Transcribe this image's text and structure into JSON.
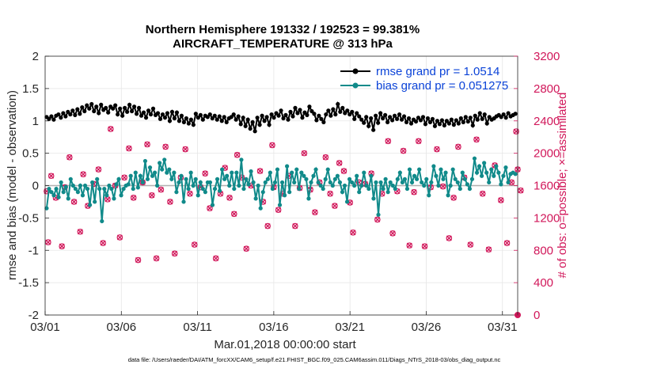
{
  "chart_data": {
    "type": "line",
    "title_line1": "Northern Hemisphere 191332 / 192523 = 99.381%",
    "title_line2": "AIRCRAFT_TEMPERATURE @ 313 hPa",
    "xlabel": "Mar.01,2018 00:00:00 start",
    "ylabel_left": "rmse and bias (model - observation)",
    "ylabel_right": "# of obs: o=possible; ×=assimilated",
    "footer": "data file: /Users/raeder/DAI/ATM_forcXX/CAM6_setup/f.e21.FHIST_BGC.f09_025.CAM6assim.011/Diags_NTrS_2018-03/obs_diag_output.nc",
    "x_ticks": [
      {
        "day": 0,
        "label": "03/01"
      },
      {
        "day": 5,
        "label": "03/06"
      },
      {
        "day": 10,
        "label": "03/11"
      },
      {
        "day": 15,
        "label": "03/16"
      },
      {
        "day": 20,
        "label": "03/21"
      },
      {
        "day": 25,
        "label": "03/26"
      },
      {
        "day": 30,
        "label": "03/31"
      }
    ],
    "xlim": [
      0,
      31
    ],
    "ylim_left": [
      -2,
      2
    ],
    "y_ticks_left": [
      {
        "v": 2,
        "label": "2"
      },
      {
        "v": 1.5,
        "label": "1.5"
      },
      {
        "v": 1,
        "label": "1"
      },
      {
        "v": 0.5,
        "label": "0.5"
      },
      {
        "v": 0,
        "label": "0"
      },
      {
        "v": -0.5,
        "label": "-0.5"
      },
      {
        "v": -1,
        "label": "-1"
      },
      {
        "v": -1.5,
        "label": "-1.5"
      },
      {
        "v": -2,
        "label": "-2"
      }
    ],
    "ylim_right": [
      0,
      3200
    ],
    "y_ticks_right": [
      {
        "v": 3200,
        "label": "3200"
      },
      {
        "v": 2800,
        "label": "2800"
      },
      {
        "v": 2400,
        "label": "2400"
      },
      {
        "v": 2000,
        "label": "2000"
      },
      {
        "v": 1600,
        "label": "1600"
      },
      {
        "v": 1200,
        "label": "1200"
      },
      {
        "v": 800,
        "label": "800"
      },
      {
        "v": 400,
        "label": "400"
      },
      {
        "v": 0,
        "label": "0"
      }
    ],
    "legend": [
      {
        "name": "rmse grand pr = 1.0514",
        "color": "#000000"
      },
      {
        "name": "bias grand pr = 0.051275",
        "color": "#108a8a"
      }
    ],
    "colors": {
      "rmse": "#000000",
      "bias": "#108a8a",
      "obs": "#d1175a",
      "zero_line": "#b0b0b0"
    },
    "series_rmse": [
      1.06,
      1.03,
      1.07,
      1.02,
      1.08,
      1.1,
      1.05,
      1.12,
      1.07,
      1.14,
      1.1,
      1.16,
      1.09,
      1.18,
      1.11,
      1.21,
      1.15,
      1.24,
      1.19,
      1.26,
      1.15,
      1.22,
      1.12,
      1.25,
      1.17,
      1.2,
      1.13,
      1.22,
      1.19,
      1.24,
      1.1,
      1.19,
      1.08,
      1.2,
      1.14,
      1.25,
      1.15,
      1.22,
      1.11,
      1.2,
      1.08,
      1.13,
      1.05,
      1.16,
      1.1,
      1.19,
      1.09,
      1.12,
      1.03,
      1.1,
      1.05,
      1.12,
      1.0,
      1.14,
      1.04,
      1.13,
      1.0,
      1.08,
      0.98,
      1.04,
      0.96,
      1.02,
      0.94,
      1.11,
      1.05,
      1.09,
      1.02,
      1.08,
      1.06,
      1.1,
      1.04,
      1.08,
      1.02,
      1.07,
      1.0,
      1.06,
      0.98,
      1.04,
      1.06,
      1.1,
      1.02,
      1.07,
      0.95,
      1.05,
      0.92,
      1.02,
      0.88,
      0.98,
      0.84,
      1.05,
      0.94,
      1.08,
      1.0,
      1.06,
      0.94,
      1.1,
      1.05,
      1.12,
      1.08,
      1.16,
      1.04,
      1.09,
      1.02,
      1.14,
      1.07,
      1.2,
      1.12,
      1.17,
      1.05,
      1.13,
      1.09,
      1.22,
      1.15,
      1.11,
      1.01,
      1.08,
      1.03,
      0.98,
      1.1,
      1.16,
      1.08,
      1.18,
      1.1,
      1.26,
      1.14,
      1.2,
      1.12,
      1.16,
      1.1,
      1.14,
      1.03,
      1.12,
      1.07,
      1.02,
      0.97,
      1.06,
      0.92,
      1.04,
      0.86,
      1.08,
      0.97,
      1.12,
      1.04,
      1.09,
      0.98,
      1.06,
      1.01,
      1.08,
      1.03,
      1.1,
      1.02,
      1.07,
      0.98,
      1.04,
      0.96,
      1.02,
      0.99,
      1.05,
      1.01,
      1.06,
      0.95,
      1.04,
      0.98,
      1.03,
      0.92,
      1.0,
      0.95,
      1.01,
      0.93,
      1.0,
      0.96,
      1.02,
      0.94,
      1.01,
      0.96,
      1.04,
      0.98,
      1.06,
      0.99,
      1.05,
      0.93,
      1.08,
      1.02,
      1.12,
      1.03,
      1.1,
      0.96,
      1.06,
      1.02,
      1.04,
      1.07,
      1.09,
      1.06,
      1.1,
      1.05,
      1.12,
      1.07,
      1.09,
      1.11
    ],
    "series_bias": [
      -0.35,
      -0.05,
      -0.1,
      -0.15,
      -0.05,
      -0.18,
      0.05,
      -0.1,
      -0.02,
      -0.2,
      0.1,
      0.0,
      -0.05,
      -0.1,
      0.0,
      -0.15,
      0.0,
      -0.05,
      -0.3,
      0.05,
      -0.25,
      0.1,
      -0.05,
      -0.55,
      -0.05,
      -0.15,
      0.0,
      -0.05,
      -0.2,
      0.02,
      0.1,
      -0.15,
      -0.05,
      0.0,
      0.02,
      0.15,
      -0.05,
      0.2,
      -0.03,
      0.15,
      0.05,
      0.38,
      0.1,
      0.28,
      0.15,
      0.2,
      0.0,
      0.35,
      0.25,
      0.4,
      0.2,
      0.25,
      0.1,
      0.2,
      -0.1,
      0.05,
      0.15,
      -0.25,
      0.1,
      -0.05,
      0.2,
      0.0,
      0.1,
      -0.15,
      0.05,
      -0.05,
      -0.1,
      0.05,
      0.05,
      -0.3,
      -0.05,
      0.1,
      -0.08,
      0.25,
      0.1,
      0.15,
      0.0,
      0.2,
      -0.05,
      0.2,
      0.0,
      0.4,
      -0.05,
      0.1,
      0.02,
      0.22,
      0.05,
      -0.2,
      0.0,
      -0.35,
      -0.1,
      0.05,
      0.1,
      0.2,
      -0.05,
      0.05,
      0.25,
      -0.3,
      0.05,
      -0.15,
      0.3,
      -0.1,
      0.2,
      0.05,
      0.25,
      -0.05,
      0.2,
      0.15,
      0.1,
      -0.2,
      0.05,
      0.15,
      0.25,
      0.05,
      0.0,
      -0.05,
      0.1,
      0.25,
      0.05,
      0.0,
      0.1,
      0.15,
      0.05,
      -0.1,
      0.0,
      -0.25,
      0.1,
      0.05,
      0.0,
      0.15,
      -0.1,
      0.0,
      0.2,
      0.0,
      -0.05,
      0.15,
      -0.2,
      0.05,
      -0.45,
      0.05,
      -0.05,
      0.1,
      -0.1,
      0.05,
      0.0,
      -0.05,
      0.1,
      0.2,
      0.05,
      0.1,
      -0.05,
      0.25,
      0.05,
      0.15,
      0.1,
      0.25,
      0.05,
      0.0,
      0.1,
      -0.15,
      0.05,
      0.3,
      0.15,
      0.0,
      0.25,
      0.1,
      0.2,
      -0.15,
      0.0,
      0.25,
      0.1,
      0.05,
      -0.05,
      0.2,
      0.1,
      0.02,
      -0.05,
      0.1,
      0.42,
      0.2,
      0.3,
      0.15,
      0.35,
      0.2,
      0.05,
      0.25,
      0.15,
      0.3,
      0.2,
      0.02,
      0.15,
      0.28,
      0.05,
      0.18,
      0.2,
      0.18
    ],
    "obs_points": [
      [
        0.1,
        1530
      ],
      [
        0.2,
        900
      ],
      [
        0.4,
        1720
      ],
      [
        0.7,
        1450
      ],
      [
        1.1,
        850
      ],
      [
        1.3,
        1580
      ],
      [
        1.6,
        1950
      ],
      [
        1.9,
        1400
      ],
      [
        2.3,
        1030
      ],
      [
        2.5,
        1740
      ],
      [
        2.8,
        1350
      ],
      [
        3.2,
        1620
      ],
      [
        3.5,
        1800
      ],
      [
        3.8,
        890
      ],
      [
        4.1,
        1430
      ],
      [
        4.3,
        2300
      ],
      [
        4.6,
        1600
      ],
      [
        4.9,
        960
      ],
      [
        5.2,
        1700
      ],
      [
        5.5,
        2060
      ],
      [
        5.8,
        1450
      ],
      [
        6.1,
        680
      ],
      [
        6.4,
        1640
      ],
      [
        6.7,
        2110
      ],
      [
        7.0,
        1480
      ],
      [
        7.3,
        700
      ],
      [
        7.6,
        1550
      ],
      [
        7.9,
        2080
      ],
      [
        8.2,
        1400
      ],
      [
        8.5,
        760
      ],
      [
        8.9,
        1700
      ],
      [
        9.2,
        2050
      ],
      [
        9.5,
        1500
      ],
      [
        9.8,
        870
      ],
      [
        10.2,
        1580
      ],
      [
        10.5,
        1750
      ],
      [
        10.8,
        1320
      ],
      [
        11.2,
        700
      ],
      [
        11.5,
        1500
      ],
      [
        11.8,
        1820
      ],
      [
        12.1,
        1450
      ],
      [
        12.4,
        1250
      ],
      [
        12.6,
        1980
      ],
      [
        12.9,
        1700
      ],
      [
        13.2,
        820
      ],
      [
        13.5,
        1600
      ],
      [
        14.1,
        1780
      ],
      [
        14.3,
        1400
      ],
      [
        14.6,
        1100
      ],
      [
        14.9,
        2100
      ],
      [
        15.0,
        1580
      ],
      [
        15.3,
        1300
      ],
      [
        15.6,
        1500
      ],
      [
        16.0,
        1720
      ],
      [
        16.4,
        1100
      ],
      [
        16.7,
        1570
      ],
      [
        17.0,
        2000
      ],
      [
        17.4,
        1550
      ],
      [
        17.7,
        1270
      ],
      [
        18.0,
        1640
      ],
      [
        18.4,
        1950
      ],
      [
        18.7,
        1500
      ],
      [
        19.0,
        1350
      ],
      [
        19.3,
        1880
      ],
      [
        19.6,
        1780
      ],
      [
        20.0,
        1390
      ],
      [
        20.2,
        1020
      ],
      [
        20.6,
        1640
      ],
      [
        21.0,
        1620
      ],
      [
        21.4,
        1750
      ],
      [
        21.8,
        1180
      ],
      [
        22.1,
        1500
      ],
      [
        22.5,
        2150
      ],
      [
        22.8,
        1010
      ],
      [
        23.1,
        1530
      ],
      [
        23.5,
        2030
      ],
      [
        23.9,
        860
      ],
      [
        24.2,
        1520
      ],
      [
        24.5,
        2150
      ],
      [
        24.9,
        850
      ],
      [
        25.3,
        1580
      ],
      [
        25.7,
        2050
      ],
      [
        26.1,
        1590
      ],
      [
        26.5,
        950
      ],
      [
        26.8,
        1450
      ],
      [
        27.1,
        2080
      ],
      [
        27.5,
        1700
      ],
      [
        27.9,
        870
      ],
      [
        28.3,
        2170
      ],
      [
        28.7,
        1500
      ],
      [
        29.1,
        810
      ],
      [
        29.5,
        1850
      ],
      [
        29.9,
        1420
      ],
      [
        30.3,
        890
      ],
      [
        30.6,
        1640
      ],
      [
        30.9,
        2270
      ],
      [
        31.0,
        1800
      ],
      [
        31.2,
        1540
      ]
    ]
  }
}
